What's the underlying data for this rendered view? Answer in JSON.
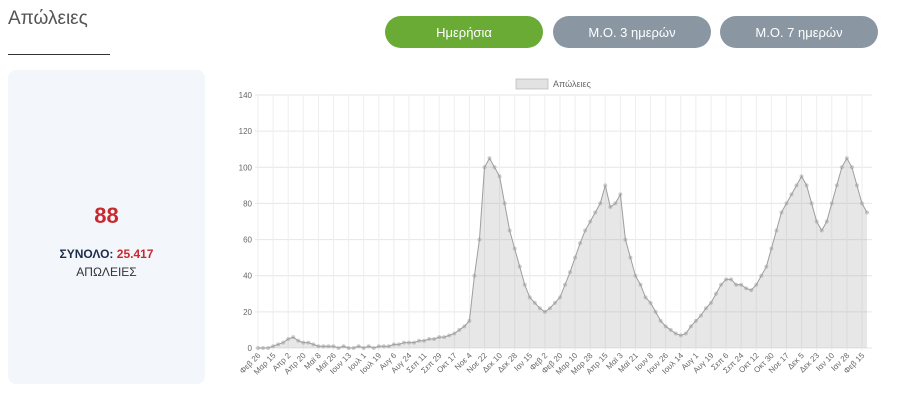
{
  "header": {
    "title": "Απώλειες"
  },
  "buttons": [
    "Ημερήσια",
    "Μ.Ο. 3 ημερών",
    "Μ.Ο. 7 ημερών"
  ],
  "summary": {
    "today": 88,
    "total_label": "ΣΥΝΟΛΟ:",
    "total": "25.417",
    "caption": "ΑΠΩΛΕΙΕΣ"
  },
  "chart_data": {
    "type": "area",
    "categories": [
      "Φεβ 26",
      null,
      null,
      "Μαρ 15",
      null,
      null,
      "Απρ 2",
      null,
      null,
      "Απρ 20",
      null,
      null,
      "Μαϊ 8",
      null,
      null,
      "Μαϊ 26",
      null,
      null,
      "Ιουν 13",
      null,
      null,
      "Ιουλ 1",
      null,
      null,
      "Ιουλ 19",
      null,
      null,
      "Αυγ 6",
      null,
      null,
      "Αυγ 24",
      null,
      null,
      "Σεπ 11",
      null,
      null,
      "Σεπ 29",
      null,
      null,
      "Οκτ 17",
      null,
      null,
      "Νοε 4",
      null,
      null,
      "Νοε 22",
      null,
      null,
      "Δεκ 10",
      null,
      null,
      "Δεκ 28",
      null,
      null,
      "Ιαν 15",
      null,
      null,
      "Φεβ 2",
      null,
      null,
      "Φεβ 20",
      null,
      null,
      "Μαρ 10",
      null,
      null,
      "Μαρ 28",
      null,
      null,
      "Απρ 15",
      null,
      null,
      "Μαϊ 3",
      null,
      null,
      "Μαϊ 21",
      null,
      null,
      "Ιουν 8",
      null,
      null,
      "Ιουν 26",
      null,
      null,
      "Ιουλ 14",
      null,
      null,
      "Αυγ 1",
      null,
      null,
      "Αυγ 19",
      null,
      null,
      "Σεπ 6",
      null,
      null,
      "Σεπ 24",
      null,
      null,
      "Οκτ 12",
      null,
      null,
      "Οκτ 30",
      null,
      null,
      "Νοε 17",
      null,
      null,
      "Δεκ 5",
      null,
      null,
      "Δεκ 23",
      null,
      null,
      "Ιαν 10",
      null,
      null,
      "Ιαν 28",
      null,
      null,
      "Φεβ 15",
      null
    ],
    "series": [
      {
        "name": "Απώλειες",
        "color": "#9e9e9e",
        "values": [
          0,
          0,
          0,
          1,
          2,
          3,
          5,
          6,
          4,
          3,
          3,
          2,
          1,
          1,
          1,
          1,
          0,
          1,
          0,
          0,
          1,
          0,
          1,
          0,
          1,
          1,
          1,
          2,
          2,
          3,
          3,
          3,
          4,
          4,
          5,
          5,
          6,
          6,
          7,
          8,
          10,
          12,
          15,
          40,
          60,
          100,
          105,
          100,
          95,
          80,
          65,
          55,
          45,
          35,
          28,
          25,
          22,
          20,
          22,
          25,
          28,
          35,
          42,
          50,
          58,
          65,
          70,
          75,
          80,
          90,
          78,
          80,
          85,
          60,
          50,
          40,
          35,
          28,
          25,
          20,
          15,
          12,
          10,
          8,
          7,
          8,
          12,
          15,
          18,
          22,
          25,
          30,
          35,
          38,
          38,
          35,
          35,
          33,
          32,
          35,
          40,
          45,
          55,
          65,
          75,
          80,
          85,
          90,
          95,
          90,
          80,
          70,
          65,
          70,
          80,
          90,
          100,
          105,
          100,
          90,
          80,
          75
        ]
      }
    ],
    "ylim": [
      0,
      140
    ],
    "yticks": [
      0,
      20,
      40,
      60,
      80,
      100,
      120,
      140
    ],
    "grid": true,
    "legend": "top"
  }
}
